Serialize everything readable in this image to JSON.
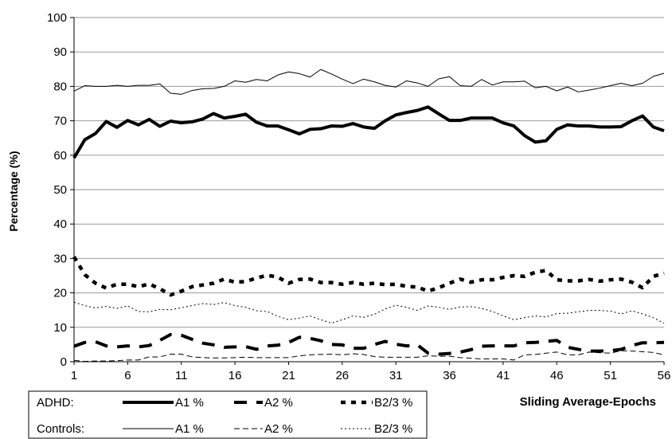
{
  "chart_data": {
    "type": "line",
    "title": "",
    "xlabel": "Sliding Average-Epochs",
    "ylabel": "Percentage (%)",
    "ylim": [
      0,
      100
    ],
    "xlim": [
      1,
      56
    ],
    "yticks": [
      0,
      10,
      20,
      30,
      40,
      50,
      60,
      70,
      80,
      90,
      100
    ],
    "xticks": [
      1,
      6,
      11,
      16,
      21,
      26,
      31,
      36,
      41,
      46,
      51,
      56
    ],
    "grid": "horizontal",
    "legend_position": "bottom-left",
    "groups": [
      {
        "label": "ADHD:",
        "series_indices": [
          0,
          1,
          2
        ]
      },
      {
        "label": "Controls:",
        "series_indices": [
          3,
          4,
          5
        ]
      }
    ],
    "series": [
      {
        "name": "A1 %",
        "group": "ADHD",
        "style": "thick-solid",
        "color": "#000000",
        "values": [
          59.2,
          64.5,
          66.3,
          69.8,
          68.1,
          70.1,
          68.8,
          70.4,
          68.4,
          69.9,
          69.4,
          69.7,
          70.5,
          72.1,
          70.8,
          71.3,
          71.9,
          69.6,
          68.5,
          68.5,
          67.4,
          66.2,
          67.5,
          67.7,
          68.5,
          68.4,
          69.2,
          68.2,
          67.8,
          70.0,
          71.7,
          72.4,
          73.0,
          74.0,
          72.0,
          70.1,
          70.1,
          70.8,
          70.8,
          70.8,
          69.4,
          68.5,
          65.7,
          63.8,
          64.2,
          67.5,
          68.8,
          68.5,
          68.5,
          68.2,
          68.2,
          68.3,
          70.0,
          71.4,
          68.2,
          67.1
        ]
      },
      {
        "name": "A2 %",
        "group": "ADHD",
        "style": "thick-dash",
        "color": "#000000",
        "values": [
          4.5,
          5.6,
          5.8,
          4.6,
          4.3,
          4.6,
          4.3,
          4.7,
          6.2,
          7.9,
          7.7,
          6.5,
          5.4,
          4.9,
          4.2,
          4.3,
          4.4,
          3.6,
          4.6,
          4.8,
          5.6,
          7.1,
          6.8,
          6.1,
          5.0,
          4.9,
          3.9,
          3.9,
          5.0,
          5.9,
          5.1,
          4.6,
          4.9,
          2.5,
          2.2,
          2.4,
          2.8,
          3.5,
          4.5,
          4.6,
          4.6,
          4.6,
          5.5,
          5.6,
          5.9,
          6.2,
          4.2,
          3.6,
          3.1,
          3.1,
          3.2,
          3.6,
          4.7,
          5.5,
          5.5,
          5.6
        ]
      },
      {
        "name": "B2/3 %",
        "group": "ADHD",
        "style": "thick-dot",
        "color": "#000000",
        "values": [
          30.5,
          25.3,
          22.8,
          21.4,
          22.5,
          22.5,
          21.8,
          22.6,
          21.2,
          19.4,
          20.5,
          21.8,
          22.3,
          22.8,
          24.0,
          23.1,
          23.3,
          24.3,
          25.1,
          24.6,
          22.8,
          23.9,
          24.0,
          23.0,
          23.0,
          22.5,
          23.0,
          22.5,
          22.8,
          22.4,
          22.5,
          21.9,
          21.7,
          20.5,
          21.5,
          22.8,
          24.0,
          23.1,
          23.8,
          23.8,
          24.5,
          25.0,
          24.8,
          26.0,
          26.5,
          23.8,
          23.5,
          23.5,
          23.9,
          23.4,
          23.8,
          24.0,
          23.1,
          21.5,
          24.8,
          25.7
        ]
      },
      {
        "name": "A1 %",
        "group": "Controls",
        "style": "thin-solid",
        "color": "#000000",
        "values": [
          78.6,
          80.2,
          80.0,
          80.0,
          80.3,
          80.0,
          80.3,
          80.3,
          80.7,
          78.0,
          77.7,
          78.8,
          79.3,
          79.4,
          80.0,
          81.6,
          81.2,
          82.0,
          81.6,
          83.3,
          84.2,
          83.7,
          82.7,
          84.9,
          83.6,
          82.1,
          80.8,
          82.1,
          81.3,
          80.3,
          79.8,
          81.6,
          81.0,
          80.0,
          82.2,
          82.8,
          80.2,
          80.0,
          82.0,
          80.4,
          81.3,
          81.3,
          81.5,
          79.6,
          80.0,
          78.7,
          79.8,
          78.4,
          78.9,
          79.5,
          80.2,
          80.9,
          80.2,
          80.9,
          82.9,
          83.8
        ]
      },
      {
        "name": "A2 %",
        "group": "Controls",
        "style": "thin-dash",
        "color": "#000000",
        "values": [
          0.4,
          0.1,
          0.2,
          0.2,
          0.3,
          0.5,
          0.5,
          1.4,
          1.4,
          2.2,
          2.2,
          1.4,
          1.2,
          1.1,
          1.1,
          1.2,
          1.3,
          1.2,
          1.2,
          1.2,
          1.2,
          1.7,
          2.0,
          2.1,
          2.2,
          2.0,
          2.3,
          2.1,
          1.5,
          1.3,
          1.3,
          1.3,
          1.3,
          1.7,
          1.6,
          1.6,
          1.2,
          1.0,
          0.8,
          0.8,
          0.8,
          0.5,
          2.0,
          2.1,
          2.5,
          2.8,
          2.0,
          2.0,
          2.8,
          2.6,
          2.5,
          3.2,
          3.1,
          2.9,
          2.7,
          2.0
        ]
      },
      {
        "name": "B2/3 %",
        "group": "Controls",
        "style": "thin-dot",
        "color": "#000000",
        "values": [
          17.3,
          16.3,
          15.6,
          16.1,
          15.5,
          16.2,
          14.6,
          14.5,
          15.2,
          15.1,
          15.7,
          16.3,
          16.9,
          16.6,
          17.2,
          16.3,
          15.8,
          14.8,
          14.6,
          13.2,
          12.2,
          12.7,
          13.3,
          12.2,
          11.2,
          12.2,
          13.3,
          12.9,
          13.8,
          15.3,
          16.4,
          15.8,
          14.9,
          16.2,
          15.8,
          15.2,
          15.9,
          16.0,
          15.5,
          14.6,
          13.3,
          12.2,
          12.8,
          13.3,
          13.0,
          14.0,
          14.1,
          14.5,
          14.9,
          14.9,
          14.7,
          13.9,
          14.8,
          13.9,
          12.8,
          11.2
        ]
      }
    ]
  }
}
